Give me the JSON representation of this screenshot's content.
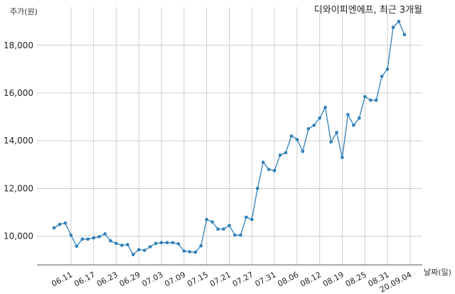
{
  "chart_data": {
    "type": "line",
    "title": "디와이피엔에프, 최근 3개월",
    "ylabel": "주가(원)",
    "xlabel": "날짜(일)",
    "ylim": [
      8800,
      19600
    ],
    "y_ticks": [
      10000,
      12000,
      14000,
      16000,
      18000
    ],
    "y_tick_labels": [
      "10,000",
      "12,000",
      "14,000",
      "16,000",
      "18,000"
    ],
    "x_tick_labels": [
      "06.11",
      "06.17",
      "06.23",
      "06.29",
      "07.03",
      "07.09",
      "07.15",
      "07.21",
      "07.27",
      "07.31",
      "08.06",
      "08.12",
      "08.19",
      "08.25",
      "08.31",
      "20.09.04"
    ],
    "x_tick_index": [
      3,
      7,
      11,
      15,
      19,
      23,
      27,
      31,
      35,
      39,
      43,
      47,
      51,
      55,
      59,
      63
    ],
    "grid": true,
    "color": "#2e7fb8",
    "series": [
      {
        "values": [
          10350,
          10500,
          10550,
          10050,
          9580,
          9880,
          9880,
          9930,
          9980,
          10100,
          9810,
          9700,
          9620,
          9650,
          9230,
          9440,
          9410,
          9560,
          9700,
          9730,
          9730,
          9730,
          9680,
          9380,
          9350,
          9330,
          9600,
          10700,
          10600,
          10300,
          10300,
          10450,
          10050,
          10050,
          10800,
          10700,
          12000,
          13100,
          12800,
          12750,
          13400,
          13500,
          14200,
          14050,
          13550,
          14500,
          14650,
          14950,
          15400,
          13950,
          14350,
          13300,
          15100,
          14650,
          14950,
          15850,
          15700,
          15700,
          16700,
          17000,
          18750,
          19000,
          18450
        ]
      }
    ]
  }
}
